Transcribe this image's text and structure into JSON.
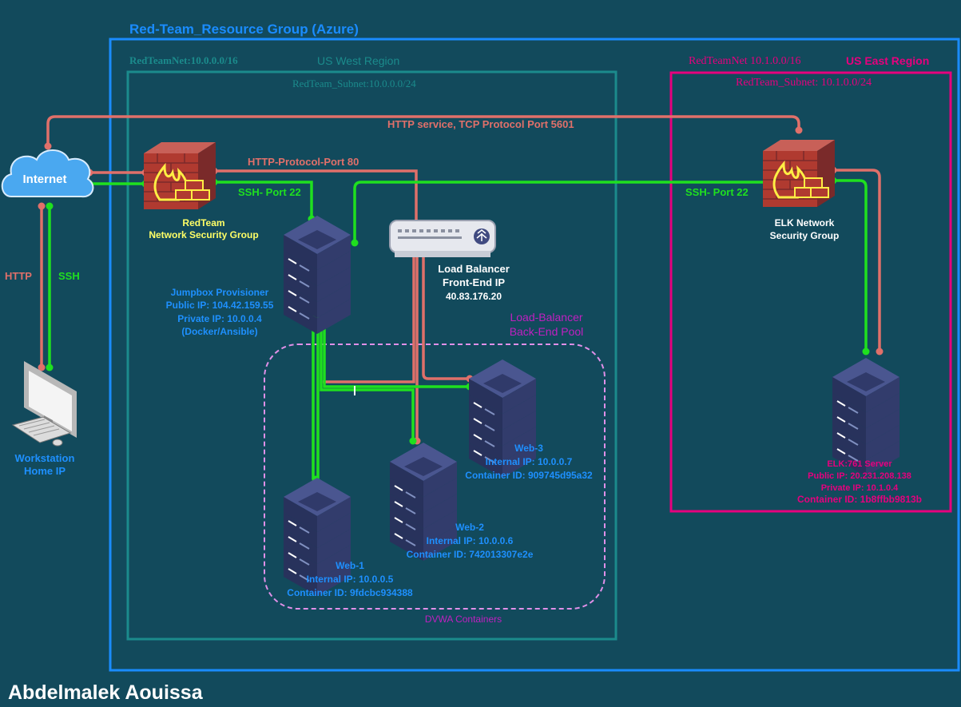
{
  "titles": {
    "resource_group": "Red-Team_Resource Group (Azure)",
    "west_vnet": "RedTeamNet:10.0.0.0/16",
    "west_region": "US West Region",
    "west_subnet": "RedTeam_Subnet:10.0.0.0/24",
    "east_vnet": "RedTeamNet 10.1.0.0/16",
    "east_region": "US East Region",
    "east_subnet": "RedTeam_Subnet: 10.1.0.0/24",
    "author": "Abdelmalek Aouissa"
  },
  "connections": {
    "http_5601": "HTTP service, TCP Protocol Port 5601",
    "http_80": "HTTP-Protocol-Port 80",
    "ssh_west": "SSH- Port 22",
    "ssh_east": "SSH- Port 22",
    "http": "HTTP",
    "ssh": "SSH"
  },
  "internet": {
    "label": "Internet"
  },
  "workstation": {
    "line1": "Workstation",
    "line2": "Home IP"
  },
  "nsg_west": {
    "line1": "RedTeam",
    "line2": "Network Security Group"
  },
  "nsg_east": {
    "line1": "ELK Network",
    "line2": "Security Group"
  },
  "jumpbox": {
    "name": "Jumpbox Provisioner",
    "public_ip": "Public IP: 104.42.159.55",
    "private_ip": "Private IP: 10.0.0.4",
    "note": "(Docker/Ansible)"
  },
  "load_balancer": {
    "line1": "Load Balancer",
    "line2": "Front-End IP",
    "ip": "40.83.176.20"
  },
  "backend_pool": {
    "line1": "Load-Balancer",
    "line2": "Back-End Pool",
    "caption": "DVWA Containers"
  },
  "web1": {
    "name": "Web-1",
    "ip": "Internal IP: 10.0.0.5",
    "container": "Container ID: 9fdcbc934388"
  },
  "web2": {
    "name": "Web-2",
    "ip": "Internal IP: 10.0.0.6",
    "container": "Container ID: 742013307e2e"
  },
  "web3": {
    "name": "Web-3",
    "ip": "Internal IP: 10.0.0.7",
    "container": "Container ID: 909745d95a32"
  },
  "elk": {
    "name": "ELK:761 Server",
    "public_ip": "Public IP: 20.231.208.138",
    "private_ip": "Private IP: 10.1.0.4",
    "container": "Container ID: 1b8ffbb9813b"
  },
  "colors": {
    "background": "#124a5c",
    "resource_group_border": "#1a8cff",
    "west_border": "#1b8b8c",
    "east_border": "#e6007e",
    "http_line": "#e0706a",
    "ssh_line": "#1fe01f",
    "pool_border": "#e090e8",
    "label_blue": "#1e90ff",
    "label_yellow": "#ffff66",
    "label_magenta": "#c020c0"
  },
  "icons": [
    "cloud-icon",
    "firewall-icon",
    "server-icon",
    "load-balancer-icon",
    "computer-icon"
  ]
}
